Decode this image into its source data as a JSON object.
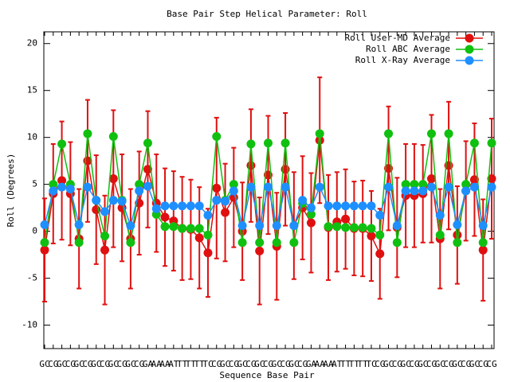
{
  "chart_data": {
    "type": "line",
    "title": "Base Pair Step Helical Parameter: Roll",
    "x_label": "Sequence Base Pair",
    "y_label": "Roll (Degrees)",
    "categories": [
      "GC",
      "CG",
      "GC",
      "CG",
      "GC",
      "CG",
      "GC",
      "CG",
      "GC",
      "CG",
      "GC",
      "CG",
      "GA",
      "AA",
      "AA",
      "AT",
      "TT",
      "TT",
      "TT",
      "TC",
      "CG",
      "GC",
      "CG",
      "GC",
      "CG",
      "GC",
      "CG",
      "GC",
      "CG",
      "GC",
      "CG",
      "GA",
      "AA",
      "AA",
      "AT",
      "TT",
      "TT",
      "TT",
      "TC",
      "CG",
      "GC",
      "CG",
      "GC",
      "CG",
      "GC",
      "CG",
      "GC",
      "CG",
      "GC",
      "CG",
      "GC",
      "CG",
      "CG"
    ],
    "series": [
      {
        "name": "Roll User-MD Average",
        "color": "#e01010",
        "values": [
          -2,
          4,
          5.4,
          4,
          -0.8,
          7.5,
          2.3,
          -2,
          5.6,
          2.5,
          -0.8,
          3,
          6.6,
          3,
          1.5,
          1.1,
          0.3,
          0.2,
          -0.7,
          -2.3,
          4.6,
          2,
          3.6,
          0,
          7,
          -2.1,
          6,
          -1.6,
          6.6,
          0.6,
          2.5,
          0.9,
          9.7,
          0.4,
          1,
          1.3,
          0.3,
          0.3,
          -0.5,
          -2.4,
          6.7,
          0.4,
          3.8,
          3.8,
          4,
          5.6,
          -0.8,
          7,
          -0.4,
          4.3,
          5.5,
          -2,
          5.6
        ],
        "errors": [
          5.5,
          5.3,
          6.3,
          5.5,
          5.3,
          6.5,
          5.8,
          5.8,
          7.3,
          5.7,
          5.3,
          5.5,
          6.2,
          5.2,
          5.2,
          5.3,
          5.5,
          5.3,
          5.4,
          4.7,
          7.5,
          5.2,
          5.3,
          5.2,
          6,
          5.7,
          6.3,
          5.7,
          6,
          5.7,
          5.5,
          5.3,
          6.7,
          5.6,
          5.3,
          5.3,
          5,
          5.1,
          4.8,
          4.8,
          6.6,
          5.3,
          5.5,
          5.5,
          5.2,
          6.8,
          5.3,
          6.8,
          5.2,
          5.3,
          6,
          5.4,
          6.4
        ]
      },
      {
        "name": "Roll ABC Average",
        "color": "#10c010",
        "values": [
          -1.2,
          5,
          9.3,
          5,
          -1.2,
          10.4,
          3.3,
          -0.5,
          10.1,
          3.3,
          -1.2,
          5,
          9.4,
          1.8,
          0.5,
          0.5,
          0.3,
          0.3,
          0.3,
          -0.4,
          10.1,
          3.3,
          5,
          -1.2,
          9.3,
          -1.2,
          9.4,
          -1.2,
          9.4,
          -1.2,
          3,
          1.8,
          10.4,
          0.5,
          0.5,
          0.4,
          0.4,
          0.4,
          0.3,
          -0.4,
          10.4,
          -1.2,
          5,
          5,
          5,
          10.4,
          -0.4,
          10.4,
          -1.2,
          5,
          9.4,
          -1.2,
          9.4
        ]
      },
      {
        "name": "Roll X-Ray Average",
        "color": "#1e8fff",
        "values": [
          0.7,
          4.3,
          4.7,
          4.5,
          0.7,
          4.7,
          3.3,
          2.1,
          3.3,
          3.2,
          0.6,
          4.3,
          4.8,
          2.4,
          2.7,
          2.7,
          2.7,
          2.7,
          2.7,
          1.7,
          3.3,
          3.2,
          4.3,
          0.6,
          4.7,
          0.6,
          4.7,
          0.6,
          4.7,
          0.6,
          3.3,
          2.5,
          4.7,
          2.7,
          2.7,
          2.7,
          2.7,
          2.7,
          2.7,
          1.7,
          4.7,
          0.6,
          4.3,
          4.3,
          4.3,
          4.7,
          1.7,
          4.7,
          0.7,
          4.3,
          4.7,
          0.6,
          4.7
        ]
      }
    ],
    "ylim": [
      -12.5,
      21.25
    ],
    "yticks": [
      -10,
      -5,
      0,
      5,
      10,
      15,
      20
    ],
    "legend": "upper right"
  }
}
